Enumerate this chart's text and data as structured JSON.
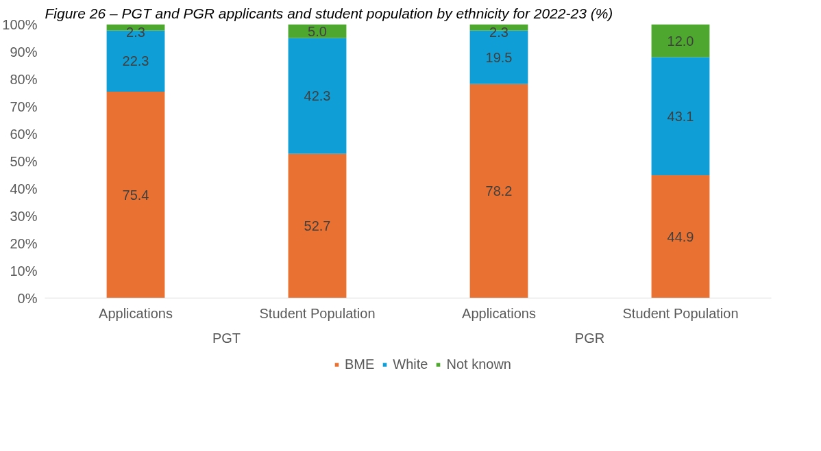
{
  "chart_data": {
    "type": "bar",
    "stacked": true,
    "title": "Figure 26 – PGT and PGR applicants and student population by ethnicity for 2022-23 (%)",
    "categories": [
      "Applications",
      "Student Population",
      "Applications",
      "Student Population"
    ],
    "annotations": [
      "PGT",
      "PGR"
    ],
    "series": [
      {
        "name": "BME",
        "color": "#e97132",
        "values": [
          75.4,
          52.7,
          78.2,
          44.9
        ],
        "value_labels": [
          "75.4",
          "52.7",
          "78.2",
          "44.9"
        ]
      },
      {
        "name": "White",
        "color": "#0f9ed5",
        "values": [
          22.3,
          42.3,
          19.5,
          43.1
        ],
        "value_labels": [
          "22.3",
          "42.3",
          "19.5",
          "43.1"
        ]
      },
      {
        "name": "Not known",
        "color": "#4ea72e",
        "values": [
          2.3,
          5.0,
          2.3,
          12.0
        ],
        "value_labels": [
          "2.3",
          "5.0",
          "2.3",
          "12.0"
        ]
      }
    ],
    "ylim": [
      0,
      100
    ],
    "yticks": [
      {
        "value": 0,
        "label": "0%"
      },
      {
        "value": 10,
        "label": "10%"
      },
      {
        "value": 20,
        "label": "20%"
      },
      {
        "value": 30,
        "label": "30%"
      },
      {
        "value": 40,
        "label": "40%"
      },
      {
        "value": 50,
        "label": "50%"
      },
      {
        "value": 60,
        "label": "60%"
      },
      {
        "value": 70,
        "label": "70%"
      },
      {
        "value": 80,
        "label": "80%"
      },
      {
        "value": 90,
        "label": "90%"
      },
      {
        "value": 100,
        "label": "100%"
      }
    ],
    "grid": false,
    "legend": "bottom"
  }
}
